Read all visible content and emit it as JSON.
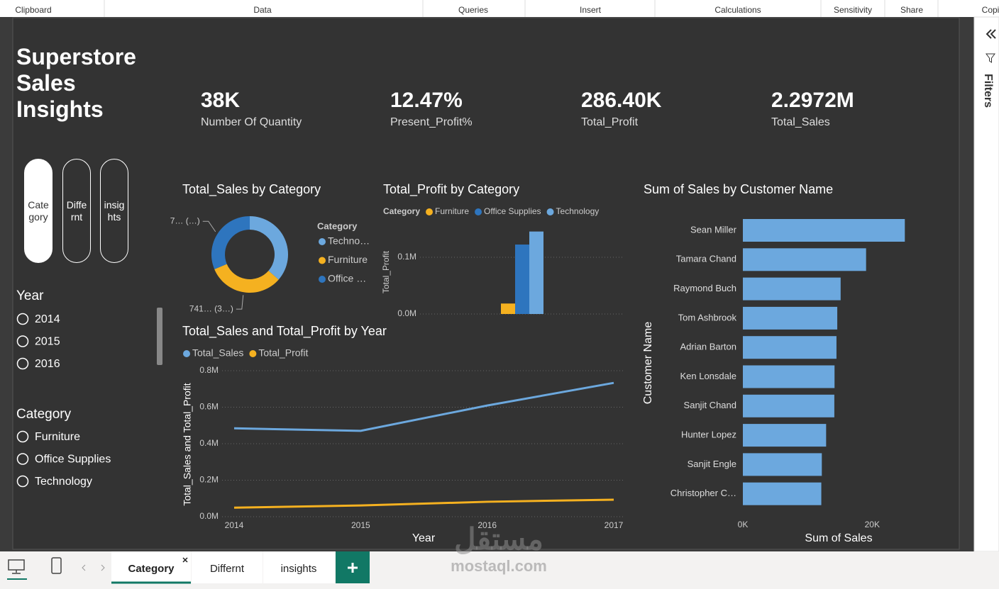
{
  "ribbon": [
    "Clipboard",
    "Data",
    "Queries",
    "Insert",
    "Calculations",
    "Sensitivity",
    "Share",
    "Copi"
  ],
  "title": "Superstore Sales Insights",
  "kpis": [
    {
      "value": "38K",
      "label": "Number Of Quantity"
    },
    {
      "value": "12.47%",
      "label": "Present_Profit%"
    },
    {
      "value": "286.40K",
      "label": "Total_Profit"
    },
    {
      "value": "2.2972M",
      "label": "Total_Sales"
    }
  ],
  "nav_buttons": [
    "Category",
    "Differnt",
    "insights"
  ],
  "slicers": [
    {
      "title": "Year",
      "items": [
        "2014",
        "2015",
        "2016"
      ]
    },
    {
      "title": "Category",
      "items": [
        "Furniture",
        "Office Supplies",
        "Technology"
      ]
    }
  ],
  "filters_pane": "Filters",
  "pages": [
    "Category",
    "Differnt",
    "insights"
  ],
  "watermark": {
    "arabic": "مستقل",
    "latin": "mostaql.com"
  },
  "chart_data": [
    {
      "type": "donut",
      "title": "Total_Sales by Category",
      "legend_title": "Category",
      "categories": [
        "Techno…",
        "Furniture",
        "Office …"
      ],
      "values": [
        836154,
        741999,
        719047
      ],
      "value_labels": [
        null,
        "741… (3…)",
        "7… (…)"
      ],
      "colors": [
        "#6ca8de",
        "#f5b120",
        "#2e75be"
      ]
    },
    {
      "type": "bar",
      "title": "Total_Profit by Category",
      "legend_title": "Category",
      "y_label": "Total_Profit",
      "categories": [
        null
      ],
      "series": [
        {
          "name": "Furniture",
          "color": "#f5b120",
          "values": [
            18451
          ]
        },
        {
          "name": "Office Supplies",
          "color": "#2e75be",
          "values": [
            122491
          ]
        },
        {
          "name": "Technology",
          "color": "#6ca8de",
          "values": [
            145455
          ]
        }
      ],
      "ylim": [
        0,
        150000
      ],
      "yticks": [
        {
          "value": 0,
          "label": "0.0M"
        },
        {
          "value": 100000,
          "label": "0.1M"
        }
      ],
      "grid": true
    },
    {
      "type": "line",
      "title": "Total_Sales and Total_Profit by Year",
      "x_label": "Year",
      "y_label": "Total_Sales and Total_Profit",
      "x": [
        2014,
        2015,
        2016,
        2017
      ],
      "xlim": [
        2014,
        2017
      ],
      "series": [
        {
          "name": "Total_Sales",
          "color": "#6ca8de",
          "values": [
            484247,
            470533,
            609206,
            733215
          ]
        },
        {
          "name": "Total_Profit",
          "color": "#f5b120",
          "values": [
            49544,
            61619,
            81795,
            93439
          ]
        }
      ],
      "ylim": [
        0,
        800000
      ],
      "yticks": [
        {
          "value": 0,
          "label": "0.0M"
        },
        {
          "value": 200000,
          "label": "0.2M"
        },
        {
          "value": 400000,
          "label": "0.4M"
        },
        {
          "value": 600000,
          "label": "0.6M"
        },
        {
          "value": 800000,
          "label": "0.8M"
        }
      ],
      "grid": true
    },
    {
      "type": "barh",
      "title": "Sum of Sales by Customer Name",
      "x_label": "Sum of Sales",
      "y_label": "Customer Name",
      "color": "#6ca8de",
      "categories": [
        "Sean Miller",
        "Tamara Chand",
        "Raymond Buch",
        "Tom Ashbrook",
        "Adrian Barton",
        "Ken Lonsdale",
        "Sanjit Chand",
        "Hunter Lopez",
        "Sanjit Engle",
        "Christopher C…"
      ],
      "values": [
        25043,
        19052,
        15117,
        14596,
        14474,
        14175,
        14142,
        12873,
        12209,
        12129
      ],
      "xlim": [
        0,
        26000
      ],
      "xticks": [
        {
          "value": 0,
          "label": "0K"
        },
        {
          "value": 20000,
          "label": "20K"
        }
      ]
    }
  ]
}
